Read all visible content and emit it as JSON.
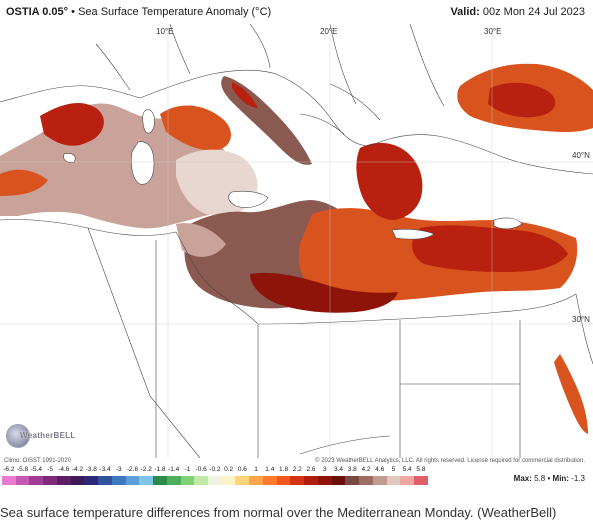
{
  "header": {
    "product": "OSTIA 0.05°",
    "separator": "•",
    "field": "Sea Surface Temperature Anomaly (°C)",
    "valid_label": "Valid:",
    "valid_time": "00z Mon 24 Jul 2023"
  },
  "map": {
    "grid_labels": {
      "lon_10e": "10°E",
      "lon_20e": "20°E",
      "lon_30e": "30°E",
      "lat_40n": "40°N",
      "lat_30n": "30°N"
    },
    "colors": {
      "land": "#ffffff",
      "border": "#444444",
      "anomaly_neutral": "#e8d6d0",
      "anomaly_weak": "#c9a39a",
      "anomaly_brown": "#8a5a50",
      "anomaly_warm": "#d9531e",
      "anomaly_hot": "#b8200f",
      "anomaly_very_hot": "#8e1309"
    }
  },
  "logo": {
    "text": "WeatherBELL",
    "icon": "weatherbell-globe-icon"
  },
  "footer": {
    "climo": "Climo: OISST 1991-2020",
    "copyright": "© 2023 WeatherBELL Analytics, LLC. All rights reserved. License required for commercial distribution."
  },
  "scale": {
    "ticks": [
      "-6.2",
      "-5.8",
      "-5.4",
      "-5",
      "-4.6",
      "-4.2",
      "-3.8",
      "-3.4",
      "-3",
      "-2.6",
      "-2.2",
      "-1.8",
      "-1.4",
      "-1",
      "-0.6",
      "-0.2",
      "0.2",
      "0.6",
      "1",
      "1.4",
      "1.8",
      "2.2",
      "2.6",
      "3",
      "3.4",
      "3.8",
      "4.2",
      "4.6",
      "5",
      "5.4",
      "5.8"
    ],
    "colors": [
      "#e67bd1",
      "#c658b6",
      "#a03c97",
      "#7d2a7a",
      "#5b1e63",
      "#3d1a57",
      "#2a2a78",
      "#31539e",
      "#3f78c2",
      "#5b9fd8",
      "#7fc3e6",
      "#2e8c4a",
      "#4fae5c",
      "#7fcf73",
      "#bfe9a6",
      "#eef6e0",
      "#fff2c4",
      "#ffd37a",
      "#ffa44a",
      "#ff7a2a",
      "#f0561e",
      "#d23414",
      "#b01d0d",
      "#8e1309",
      "#6a0f08",
      "#7a4a40",
      "#9e6e64",
      "#c39a90",
      "#e2c7c0",
      "#f0a7a0",
      "#e0606a"
    ]
  },
  "maxmin": {
    "max_label": "Max:",
    "max_value": "5.8",
    "sep": "•",
    "min_label": "Min:",
    "min_value": "-1.3"
  },
  "caption": "Sea surface temperature differences from normal over the Mediterranean Monday. (WeatherBell)"
}
